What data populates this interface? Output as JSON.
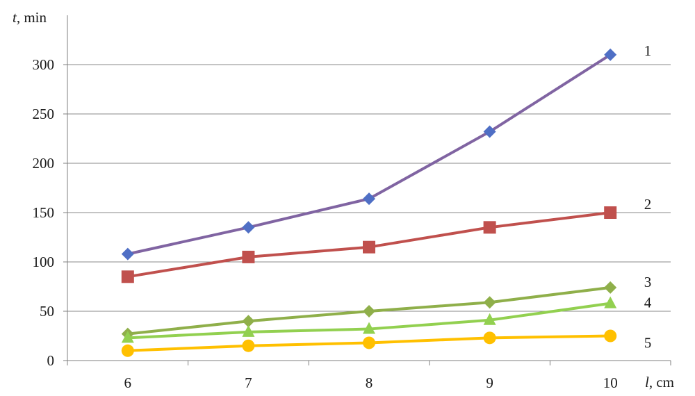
{
  "chart_data": {
    "type": "line",
    "xlabel_var": "l",
    "xlabel_unit": ", cm",
    "ylabel_var": "t",
    "ylabel_unit": ", min",
    "x": [
      6,
      7,
      8,
      9,
      10
    ],
    "xlim": [
      5.5,
      10.5
    ],
    "ylim": [
      0,
      350
    ],
    "yticks": [
      0,
      50,
      100,
      150,
      200,
      250,
      300
    ],
    "grid": true,
    "series": [
      {
        "label": "1",
        "marker": "diamond",
        "line_color": "#8064A2",
        "marker_color": "#4F6FC5",
        "values": [
          108,
          135,
          164,
          232,
          310
        ]
      },
      {
        "label": "2",
        "marker": "square",
        "line_color": "#C0504D",
        "marker_color": "#C0504D",
        "values": [
          85,
          105,
          115,
          135,
          150
        ]
      },
      {
        "label": "3",
        "marker": "diamond",
        "line_color": "#8FAF4A",
        "marker_color": "#8FAF4A",
        "values": [
          27,
          40,
          50,
          59,
          74
        ]
      },
      {
        "label": "4",
        "marker": "triangle",
        "line_color": "#92D050",
        "marker_color": "#92D050",
        "values": [
          23,
          29,
          32,
          41,
          58
        ]
      },
      {
        "label": "5",
        "marker": "circle",
        "line_color": "#FFC000",
        "marker_color": "#FFC000",
        "values": [
          10,
          15,
          18,
          23,
          25
        ]
      }
    ]
  }
}
